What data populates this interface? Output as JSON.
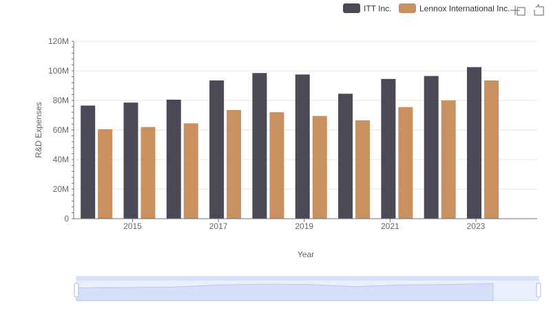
{
  "toolbar": {
    "zoom_icon": "zoom-area-icon",
    "restore_icon": "restore-icon"
  },
  "colors": {
    "ITT Inc.": "#4a4955",
    "Lennox International Inc.": "#c99060",
    "grid": "#e6e6e6",
    "axis": "#6e7079",
    "zoom_fill": "#d5e0fb",
    "zoom_border": "#a8b7dd"
  },
  "chart_data": {
    "type": "bar",
    "xlabel": "Year",
    "ylabel": "R&D Expenses",
    "categories": [
      "2014",
      "2015",
      "2016",
      "2017",
      "2018",
      "2019",
      "2020",
      "2021",
      "2022",
      "2023"
    ],
    "x_tick_labels": [
      "2015",
      "2017",
      "2019",
      "2021",
      "2023"
    ],
    "y_tick_labels": [
      "0",
      "20M",
      "40M",
      "60M",
      "80M",
      "100M",
      "120M"
    ],
    "ylim": [
      0,
      120000000
    ],
    "grid": true,
    "legend_position": "top-right",
    "series": [
      {
        "name": "ITT Inc.",
        "values": [
          76500000,
          78500000,
          80500000,
          93500000,
          98500000,
          97500000,
          84500000,
          94500000,
          96500000,
          102500000
        ]
      },
      {
        "name": "Lennox International Inc.",
        "values": [
          60500000,
          62000000,
          64500000,
          73500000,
          72000000,
          69500000,
          66500000,
          75500000,
          80000000,
          93500000
        ]
      }
    ]
  }
}
